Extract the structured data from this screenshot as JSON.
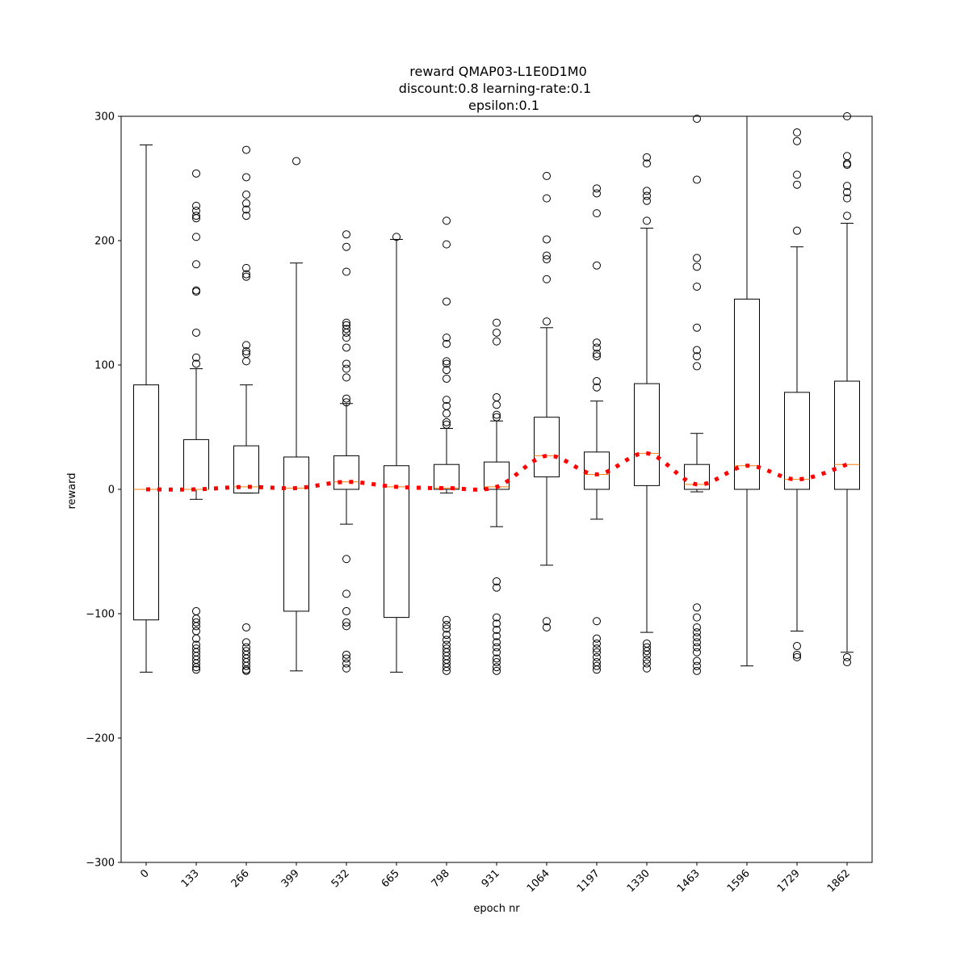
{
  "chart_data": {
    "type": "box",
    "title_lines": [
      "reward QMAP03-L1E0D1M0",
      "discount:0.8 learning-rate:0.1",
      "epsilon:0.1"
    ],
    "xlabel": "epoch nr",
    "ylabel": "reward",
    "ylim": [
      -300,
      300
    ],
    "yticks": [
      -300,
      -200,
      -100,
      0,
      100,
      200,
      300
    ],
    "ytick_labels": [
      "−300",
      "−200",
      "−100",
      "0",
      "100",
      "200",
      "300"
    ],
    "categories": [
      "0",
      "133",
      "266",
      "399",
      "532",
      "665",
      "798",
      "931",
      "1064",
      "1197",
      "1330",
      "1463",
      "1596",
      "1729",
      "1862"
    ],
    "colors": {
      "box": "#000000",
      "median": "#ff7f0e",
      "trend": "#ff0000"
    },
    "boxes": [
      {
        "q1": -105,
        "median": 0,
        "q3": 84,
        "whisker_low": -147,
        "whisker_high": 277,
        "outliers": []
      },
      {
        "q1": 0,
        "median": 0,
        "q3": 40,
        "whisker_low": -8,
        "whisker_high": 97,
        "outliers": [
          254,
          228,
          224,
          220,
          218,
          203,
          181,
          160,
          159,
          126,
          106,
          101,
          -98,
          -104,
          -107,
          -110,
          -114,
          -120,
          -125,
          -128,
          -131,
          -134,
          -137,
          -140,
          -143,
          -145
        ]
      },
      {
        "q1": -3,
        "median": 2,
        "q3": 35,
        "whisker_low": -3,
        "whisker_high": 84,
        "outliers": [
          273,
          251,
          237,
          230,
          225,
          220,
          178,
          173,
          171,
          116,
          111,
          109,
          103,
          -111,
          -123,
          -127,
          -130,
          -133,
          -136,
          -139,
          -142,
          -145,
          -146
        ]
      },
      {
        "q1": -98,
        "median": 1,
        "q3": 26,
        "whisker_low": -146,
        "whisker_high": 182,
        "outliers": [
          264
        ]
      },
      {
        "q1": 0,
        "median": 6,
        "q3": 27,
        "whisker_low": -28,
        "whisker_high": 69,
        "outliers": [
          205,
          195,
          175,
          134,
          132,
          129,
          126,
          122,
          114,
          101,
          97,
          90,
          73,
          70,
          -56,
          -84,
          -98,
          -107,
          -110,
          -133,
          -136,
          -140,
          -144
        ]
      },
      {
        "q1": -103,
        "median": 2,
        "q3": 19,
        "whisker_low": -147,
        "whisker_high": 201,
        "outliers": [
          203
        ]
      },
      {
        "q1": 0,
        "median": 1,
        "q3": 20,
        "whisker_low": -3,
        "whisker_high": 49,
        "outliers": [
          216,
          197,
          151,
          122,
          117,
          103,
          101,
          96,
          89,
          72,
          67,
          61,
          54,
          52,
          -105,
          -109,
          -112,
          -117,
          -121,
          -125,
          -128,
          -131,
          -134,
          -137,
          -140,
          -143,
          -146
        ]
      },
      {
        "q1": 0,
        "median": 2,
        "q3": 22,
        "whisker_low": -30,
        "whisker_high": 55,
        "outliers": [
          134,
          126,
          119,
          74,
          68,
          60,
          58,
          -74,
          -79,
          -103,
          -108,
          -113,
          -118,
          -123,
          -127,
          -131,
          -136,
          -139,
          -143,
          -146
        ]
      },
      {
        "q1": 10,
        "median": 27,
        "q3": 58,
        "whisker_low": -61,
        "whisker_high": 130,
        "outliers": [
          252,
          234,
          201,
          188,
          185,
          169,
          135,
          -106,
          -111
        ]
      },
      {
        "q1": 0,
        "median": 12,
        "q3": 30,
        "whisker_low": -24,
        "whisker_high": 71,
        "outliers": [
          242,
          238,
          222,
          180,
          118,
          114,
          109,
          107,
          87,
          82,
          -106,
          -120,
          -124,
          -128,
          -131,
          -135,
          -139,
          -142,
          -145
        ]
      },
      {
        "q1": 3,
        "median": 29,
        "q3": 85,
        "whisker_low": -115,
        "whisker_high": 210,
        "outliers": [
          267,
          262,
          240,
          236,
          232,
          216,
          -124,
          -127,
          -130,
          -133,
          -137,
          -140,
          -144
        ]
      },
      {
        "q1": 0,
        "median": 4,
        "q3": 20,
        "whisker_low": -2,
        "whisker_high": 45,
        "outliers": [
          298,
          249,
          186,
          179,
          163,
          130,
          112,
          107,
          99,
          -95,
          -103,
          -111,
          -115,
          -119,
          -123,
          -127,
          -131,
          -138,
          -142,
          -146
        ]
      },
      {
        "q1": 0,
        "median": 19,
        "q3": 153,
        "whisker_low": -142,
        "whisker_high": 300,
        "outliers": []
      },
      {
        "q1": 0,
        "median": 8,
        "q3": 78,
        "whisker_low": -114,
        "whisker_high": 195,
        "outliers": [
          287,
          280,
          253,
          245,
          208,
          -126,
          -133,
          -135
        ]
      },
      {
        "q1": 0,
        "median": 20,
        "q3": 87,
        "whisker_low": -131,
        "whisker_high": 214,
        "outliers": [
          300,
          268,
          262,
          261,
          244,
          239,
          234,
          220,
          -135,
          -139
        ]
      }
    ],
    "trend": [
      0,
      0,
      2,
      1,
      6,
      2,
      1,
      2,
      27,
      12,
      29,
      4,
      19,
      8,
      20
    ]
  }
}
